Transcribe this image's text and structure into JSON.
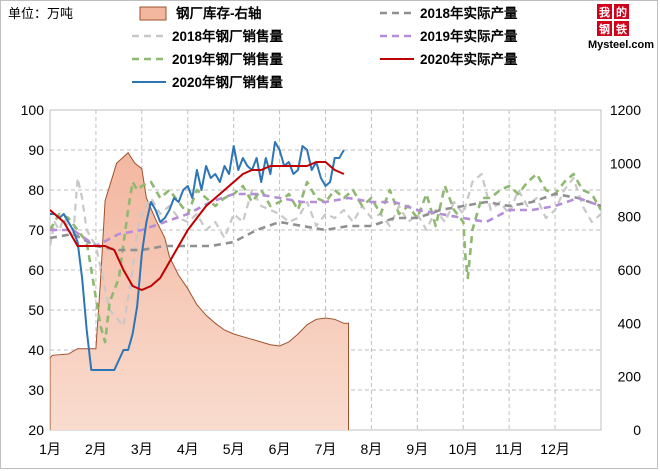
{
  "unit_label": "单位：万吨",
  "logo": {
    "chars": [
      "我",
      "的",
      "钢",
      "铁"
    ],
    "text": "Mysteel.com"
  },
  "colors": {
    "inventory_fill_top": "#f3b7a0",
    "inventory_fill_bottom": "#f9dccf",
    "inventory_stroke": "#a0522d",
    "sales_2018": "#c8c8c8",
    "sales_2019": "#8fb870",
    "sales_2020": "#2e75b6",
    "prod_2018": "#909090",
    "prod_2019": "#b48ed6",
    "prod_2020": "#c00000",
    "grid": "#bfbfbf",
    "logo_red": "#d0021b"
  },
  "chart_data": {
    "type": "line",
    "title": "",
    "categories": [
      "1月",
      "2月",
      "3月",
      "4月",
      "5月",
      "6月",
      "7月",
      "8月",
      "9月",
      "10月",
      "11月",
      "12月"
    ],
    "left_axis": {
      "min": 20,
      "max": 100,
      "ticks": [
        "20",
        "30",
        "40",
        "50",
        "60",
        "70",
        "80",
        "90",
        "100"
      ]
    },
    "right_axis": {
      "min": 0,
      "max": 1200,
      "ticks": [
        "0",
        "200",
        "400",
        "600",
        "800",
        "1000",
        "1200"
      ]
    },
    "legend": [
      {
        "key": "inventory",
        "label": "钢厂库存-右轴",
        "style": "area"
      },
      {
        "key": "prod_2018",
        "label": "2018年实际产量",
        "style": "dash"
      },
      {
        "key": "sales_2018",
        "label": "2018年钢厂销售量",
        "style": "dash"
      },
      {
        "key": "prod_2019",
        "label": "2019年实际产量",
        "style": "dash"
      },
      {
        "key": "sales_2019",
        "label": "2019年钢厂销售量",
        "style": "dash"
      },
      {
        "key": "prod_2020",
        "label": "2020年实际产量",
        "style": "solid"
      },
      {
        "key": "sales_2020",
        "label": "2020年钢厂销售量",
        "style": "solid"
      }
    ],
    "series": [
      {
        "key": "inventory",
        "axis": "right",
        "x": [
          1.0,
          1.05,
          1.4,
          1.55,
          1.6,
          2.0,
          2.1,
          2.2,
          2.45,
          2.7,
          2.85,
          3.0,
          3.1,
          3.3,
          3.5,
          3.6,
          3.8,
          4.0,
          4.2,
          4.4,
          4.6,
          4.8,
          5.0,
          5.2,
          5.4,
          5.6,
          5.8,
          6.0,
          6.2,
          6.4,
          6.6,
          6.8,
          7.0,
          7.2,
          7.4,
          7.5
        ],
        "values": [
          270,
          280,
          285,
          300,
          305,
          305,
          560,
          860,
          1000,
          1040,
          1000,
          980,
          870,
          790,
          720,
          650,
          580,
          530,
          470,
          430,
          400,
          375,
          360,
          350,
          340,
          330,
          320,
          315,
          330,
          360,
          395,
          415,
          420,
          415,
          400,
          400
        ]
      },
      {
        "key": "sales_2018",
        "axis": "left",
        "x": [
          1.0,
          1.1,
          1.2,
          1.3,
          1.5,
          1.6,
          1.7,
          1.8,
          2.0,
          2.3,
          2.6,
          2.8,
          2.9,
          3.0,
          3.2,
          3.4,
          3.6,
          3.8,
          4.0,
          4.2,
          4.4,
          4.6,
          4.8,
          5.0,
          5.2,
          5.4,
          5.6,
          5.8,
          6.0,
          6.2,
          6.4,
          6.6,
          6.8,
          7.0,
          7.2,
          7.4,
          7.6,
          7.8,
          8.0,
          8.2,
          8.4,
          8.6,
          8.8,
          9.0,
          9.2,
          9.4,
          9.6,
          9.8,
          10.0,
          10.2,
          10.4,
          10.6,
          10.8,
          11.0,
          11.2,
          11.4,
          11.6,
          11.8,
          12.0,
          12.2,
          12.4,
          12.6,
          12.8,
          13.0
        ],
        "values": [
          66,
          72,
          70,
          73,
          68,
          83,
          78,
          70,
          66,
          50,
          46,
          60,
          70,
          74,
          78,
          74,
          76,
          73,
          72,
          74,
          70,
          72,
          68,
          74,
          72,
          80,
          76,
          75,
          74,
          72,
          73,
          77,
          71,
          74,
          73,
          75,
          72,
          76,
          73,
          74,
          71,
          76,
          72,
          74,
          70,
          75,
          72,
          77,
          74,
          82,
          84,
          75,
          77,
          74,
          80,
          76,
          78,
          73,
          75,
          80,
          83,
          76,
          72,
          74
        ]
      },
      {
        "key": "sales_2019",
        "axis": "left",
        "x": [
          1.0,
          1.1,
          1.2,
          1.4,
          1.6,
          1.8,
          2.0,
          2.1,
          2.2,
          2.3,
          2.5,
          2.7,
          2.8,
          2.9,
          3.0,
          3.2,
          3.4,
          3.6,
          3.8,
          4.0,
          4.2,
          4.4,
          4.6,
          4.8,
          5.0,
          5.2,
          5.4,
          5.6,
          5.8,
          6.0,
          6.2,
          6.4,
          6.6,
          6.8,
          7.0,
          7.2,
          7.4,
          7.6,
          7.8,
          8.0,
          8.2,
          8.4,
          8.6,
          8.8,
          9.0,
          9.2,
          9.4,
          9.6,
          9.8,
          10.0,
          10.05,
          10.1,
          10.2,
          10.4,
          10.6,
          10.8,
          11.0,
          11.2,
          11.4,
          11.6,
          11.8,
          12.0,
          12.2,
          12.4,
          12.6,
          12.8,
          13.0
        ],
        "values": [
          70,
          72,
          74,
          73,
          70,
          67,
          53,
          46,
          42,
          52,
          58,
          75,
          82,
          80,
          81,
          82,
          78,
          80,
          77,
          74,
          80,
          78,
          76,
          78,
          79,
          81,
          77,
          80,
          76,
          77,
          79,
          75,
          82,
          78,
          77,
          80,
          78,
          80,
          76,
          78,
          74,
          80,
          74,
          76,
          73,
          79,
          71,
          81,
          75,
          72,
          63,
          58,
          70,
          78,
          78,
          80,
          81,
          79,
          82,
          84,
          80,
          79,
          82,
          84,
          80,
          79,
          75
        ]
      },
      {
        "key": "sales_2020",
        "axis": "left",
        "x": [
          1.0,
          1.1,
          1.2,
          1.3,
          1.4,
          1.5,
          1.6,
          1.7,
          1.8,
          1.9,
          2.0,
          2.2,
          2.4,
          2.6,
          2.7,
          2.8,
          2.9,
          3.0,
          3.1,
          3.2,
          3.3,
          3.4,
          3.5,
          3.6,
          3.7,
          3.8,
          3.9,
          4.0,
          4.1,
          4.2,
          4.3,
          4.4,
          4.5,
          4.6,
          4.7,
          4.8,
          4.9,
          5.0,
          5.1,
          5.2,
          5.3,
          5.4,
          5.5,
          5.6,
          5.7,
          5.8,
          5.9,
          6.0,
          6.1,
          6.2,
          6.3,
          6.4,
          6.5,
          6.6,
          6.7,
          6.8,
          6.9,
          7.0,
          7.1,
          7.2,
          7.3,
          7.4
        ],
        "values": [
          74,
          74,
          73,
          74,
          72,
          70,
          67,
          58,
          45,
          35,
          35,
          35,
          35,
          40,
          40,
          44,
          51,
          64,
          72,
          77,
          75,
          72,
          73,
          75,
          78,
          77,
          80,
          81,
          78,
          85,
          80,
          86,
          83,
          84,
          82,
          86,
          84,
          91,
          85,
          88,
          86,
          85,
          88,
          82,
          88,
          84,
          92,
          90,
          86,
          87,
          84,
          85,
          91,
          90,
          85,
          87,
          83,
          81,
          82,
          88,
          88,
          90
        ]
      },
      {
        "key": "prod_2018",
        "axis": "left",
        "x": [
          1.0,
          1.5,
          2.0,
          2.5,
          3.0,
          3.5,
          4.0,
          4.5,
          5.0,
          5.5,
          6.0,
          6.5,
          7.0,
          7.5,
          8.0,
          8.5,
          9.0,
          9.5,
          10.0,
          10.5,
          11.0,
          11.5,
          12.0,
          12.5,
          13.0
        ],
        "values": [
          68,
          69,
          66,
          65,
          65,
          66,
          66,
          66,
          67,
          70,
          72,
          71,
          70,
          71,
          71,
          73,
          73,
          75,
          76,
          77,
          76,
          77,
          79,
          78,
          76
        ]
      },
      {
        "key": "prod_2019",
        "axis": "left",
        "x": [
          1.0,
          1.5,
          2.0,
          2.5,
          3.0,
          3.5,
          4.0,
          4.5,
          5.0,
          5.5,
          6.0,
          6.5,
          7.0,
          7.5,
          8.0,
          8.5,
          9.0,
          9.5,
          10.0,
          10.5,
          11.0,
          11.5,
          12.0,
          12.5,
          13.0
        ],
        "values": [
          70,
          70,
          66,
          69,
          70,
          72,
          74,
          77,
          79,
          79,
          78,
          77,
          77,
          78,
          77,
          77,
          75,
          74,
          73,
          72,
          75,
          75,
          76,
          78,
          76
        ]
      },
      {
        "key": "prod_2020",
        "axis": "left",
        "x": [
          1.0,
          1.3,
          1.6,
          2.0,
          2.2,
          2.4,
          2.6,
          2.8,
          3.0,
          3.2,
          3.4,
          3.6,
          3.8,
          4.0,
          4.2,
          4.4,
          4.6,
          4.8,
          5.0,
          5.2,
          5.4,
          5.6,
          5.8,
          6.0,
          6.2,
          6.4,
          6.6,
          6.8,
          7.0,
          7.2,
          7.4
        ],
        "values": [
          75,
          72,
          66,
          66,
          66,
          65,
          60,
          56,
          55,
          56,
          58,
          62,
          66,
          70,
          73,
          76,
          78,
          80,
          82,
          84,
          85,
          85,
          86,
          86,
          86,
          86,
          86,
          87,
          87,
          85,
          84
        ]
      }
    ]
  }
}
